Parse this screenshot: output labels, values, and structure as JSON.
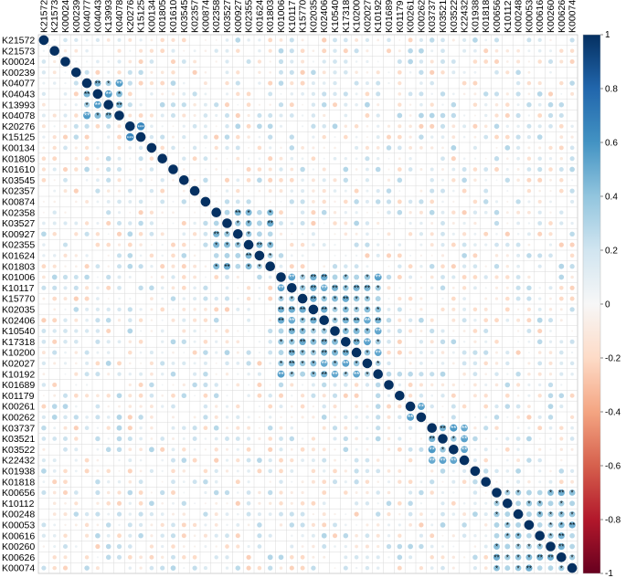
{
  "chart_data": {
    "type": "heatmap",
    "style": "correlation-circle-matrix",
    "variables": [
      "K21572",
      "K21573",
      "K00024",
      "K00239",
      "K04077",
      "K04043",
      "K13993",
      "K04078",
      "K20276",
      "K15125",
      "K00134",
      "K01805",
      "K01610",
      "K03545",
      "K02357",
      "K00874",
      "K02358",
      "K03527",
      "K00927",
      "K02355",
      "K01624",
      "K01803",
      "K01006",
      "K10117",
      "K15770",
      "K02035",
      "K02406",
      "K10540",
      "K17318",
      "K10200",
      "K02027",
      "K10192",
      "K01689",
      "K01179",
      "K00261",
      "K00262",
      "K03737",
      "K03521",
      "K03522",
      "K22432",
      "K01938",
      "K01818",
      "K00656",
      "K10112",
      "K00248",
      "K00053",
      "K00616",
      "K00260",
      "K00626",
      "K00074"
    ],
    "clusters": [
      {
        "members": [
          "K04077",
          "K04043",
          "K13993",
          "K04078"
        ],
        "r": 0.6
      },
      {
        "members": [
          "K20276",
          "K15125"
        ],
        "r": 0.9
      },
      {
        "members": [
          "K02358",
          "K03527",
          "K00927",
          "K02355",
          "K01624",
          "K01803"
        ],
        "r": 0.5
      },
      {
        "members": [
          "K01006",
          "K10117",
          "K15770",
          "K02035",
          "K02406",
          "K10540",
          "K17318",
          "K10200",
          "K02027",
          "K10192"
        ],
        "r": 0.55
      },
      {
        "members": [
          "K00261",
          "K00262"
        ],
        "r": 0.85
      },
      {
        "members": [
          "K03737",
          "K03521",
          "K03522",
          "K22432"
        ],
        "r": 0.65
      },
      {
        "members": [
          "K00656",
          "K10112",
          "K00248",
          "K00053",
          "K00616",
          "K00260",
          "K00626",
          "K00074"
        ],
        "r": 0.5
      }
    ],
    "colorbar": {
      "min": -1,
      "max": 1,
      "ticks": [
        1,
        0.8,
        0.6,
        0.4,
        0.2,
        0,
        -0.2,
        -0.4,
        -0.6,
        -0.8,
        -1
      ]
    },
    "colors": {
      "positive": "#053061",
      "neutral": "#f7f7f7",
      "negative": "#67001f",
      "grid": "#d9d9d9",
      "text": "#000000"
    }
  }
}
